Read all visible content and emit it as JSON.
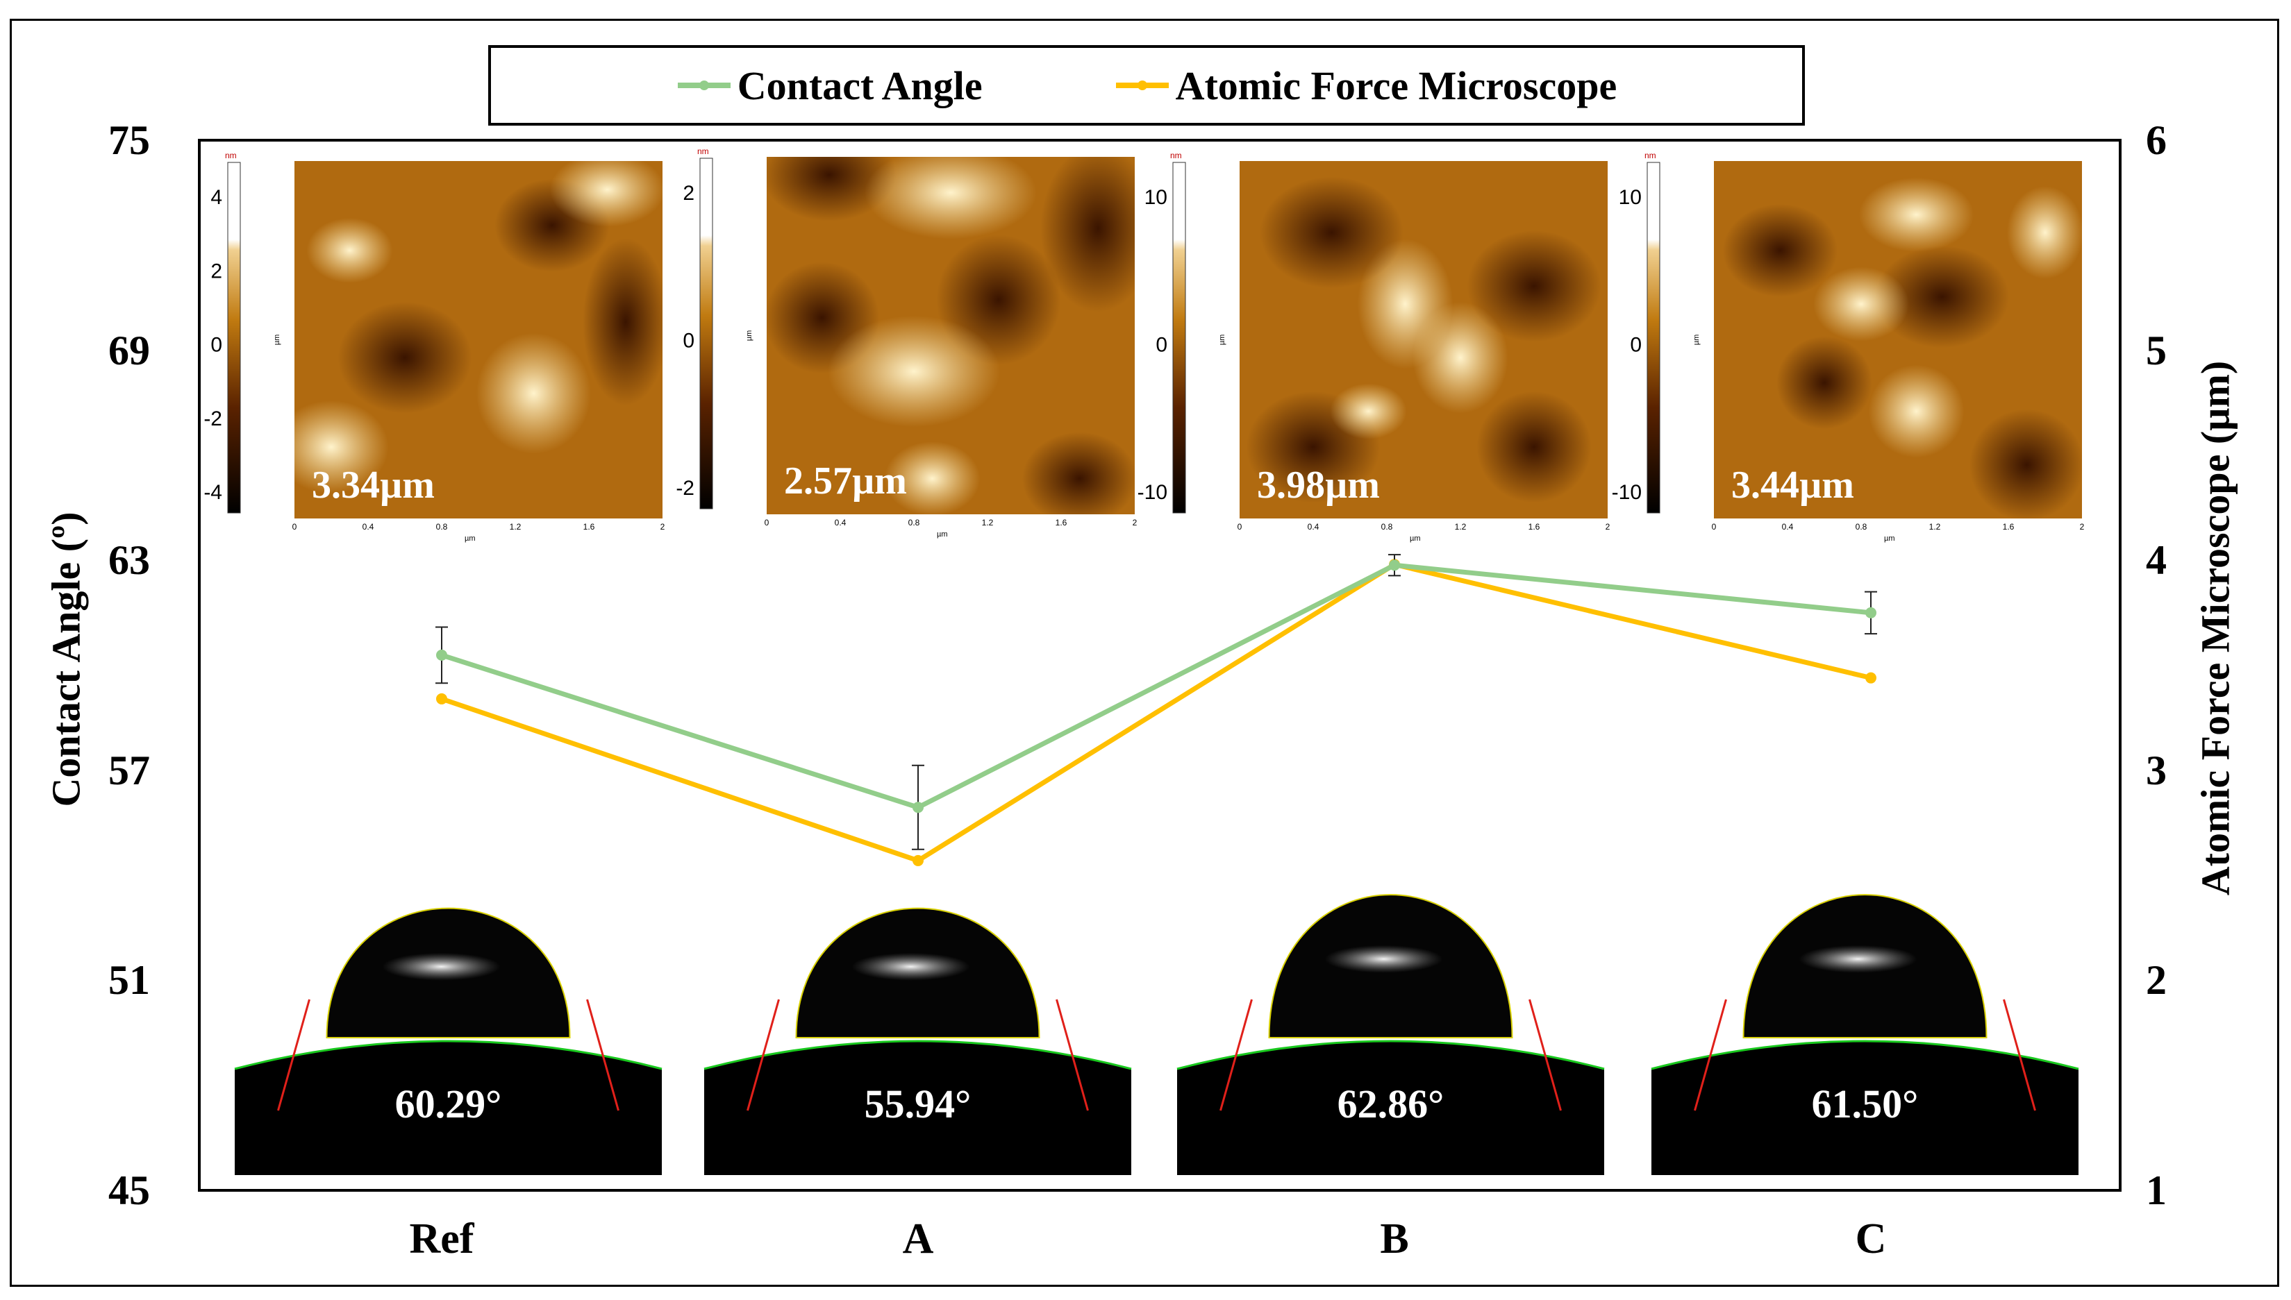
{
  "legend": {
    "contact_angle": "Contact Angle",
    "afm": "Atomic Force Microscope"
  },
  "colors": {
    "contact_angle": "#92cd8a",
    "afm": "#ffbf00",
    "afm_dark": "#3a1400",
    "afm_mid": "#b06a10",
    "afm_light": "#f5dd9a"
  },
  "chart_data": {
    "type": "line",
    "categories": [
      "Ref",
      "A",
      "B",
      "C"
    ],
    "xlabel": "",
    "ylabel": "Contact Angle (º)",
    "y2label": "Atomic Force Microscope (µm)",
    "ylim": [
      45,
      75
    ],
    "y2lim": [
      1,
      6
    ],
    "yticks": [
      "45",
      "51",
      "57",
      "63",
      "69",
      "75"
    ],
    "y2ticks": [
      "1",
      "2",
      "3",
      "4",
      "5",
      "6"
    ],
    "series": [
      {
        "name": "Contact Angle",
        "axis": "left",
        "values": [
          60.29,
          55.94,
          62.86,
          61.5
        ],
        "errors": [
          0.8,
          1.2,
          0.3,
          0.6
        ]
      },
      {
        "name": "Atomic Force Microscope",
        "axis": "right",
        "values": [
          3.34,
          2.57,
          3.98,
          3.44
        ]
      }
    ],
    "afm_insets": {
      "labels": [
        "3.34µm",
        "2.57µm",
        "3.98µm",
        "3.44µm"
      ],
      "colorbar_ticks": [
        [
          "4",
          "2",
          "0",
          "-2",
          "-4"
        ],
        [
          "2",
          "0",
          "-2"
        ],
        [
          "10",
          "0",
          "-10"
        ],
        [
          "10",
          "0",
          "-10"
        ]
      ],
      "colorbar_unit": "nm",
      "axis_ticks": [
        "0",
        "0.4",
        "0.8",
        "1.2",
        "1.6",
        "2"
      ],
      "axis_unit": "µm"
    },
    "droplet_insets": {
      "labels": [
        "60.29°",
        "55.94°",
        "62.86°",
        "61.50°"
      ]
    }
  }
}
